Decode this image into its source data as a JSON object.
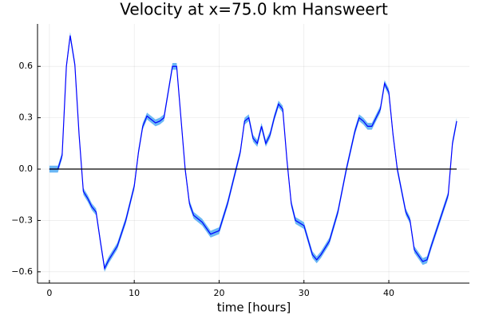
{
  "chart_data": {
    "type": "line",
    "title": "Velocity at x=75.0 km Hansweert",
    "xlabel": "time [hours]",
    "xlim": [
      -1.4,
      49.5
    ],
    "ylim": [
      -0.666,
      0.848
    ],
    "xticks": [
      0,
      10,
      20,
      30,
      40
    ],
    "yticks": [
      {
        "value": -0.6,
        "label": "−0.6"
      },
      {
        "value": -0.3,
        "label": "−0.3"
      },
      {
        "value": 0,
        "label": "0.0"
      },
      0.3,
      0.6
    ],
    "grid": true,
    "series": [
      {
        "color": "#0000ff",
        "ribbon_color": "#6ab7f5",
        "ribbon": 0.02,
        "x": [
          0,
          1,
          1.5,
          2,
          2.45,
          3,
          3.5,
          4,
          4.5,
          5,
          5.5,
          6,
          6.5,
          7,
          8,
          9,
          10,
          10.5,
          11,
          11.5,
          12,
          12.5,
          13,
          13.5,
          14,
          14.5,
          15,
          15.5,
          16,
          16.5,
          17,
          18,
          19,
          20,
          21,
          22,
          22.5,
          23,
          23.5,
          24,
          24.5,
          25,
          25.5,
          26,
          26.5,
          27,
          27.5,
          28,
          28.5,
          29,
          30,
          31,
          31.5,
          32,
          33,
          34,
          35,
          36,
          36.5,
          37,
          37.5,
          38,
          39,
          39.5,
          40,
          40.5,
          41,
          42,
          42.5,
          43,
          44,
          44.5,
          45,
          46,
          47,
          47.5,
          48
        ],
        "values": [
          0,
          0,
          0.08,
          0.6,
          0.78,
          0.61,
          0.2,
          -0.13,
          -0.17,
          -0.22,
          -0.25,
          -0.42,
          -0.58,
          -0.53,
          -0.45,
          -0.3,
          -0.1,
          0.1,
          0.25,
          0.31,
          0.29,
          0.27,
          0.28,
          0.3,
          0.45,
          0.6,
          0.6,
          0.3,
          0,
          -0.2,
          -0.27,
          -0.31,
          -0.38,
          -0.36,
          -0.2,
          0,
          0.1,
          0.28,
          0.3,
          0.18,
          0.15,
          0.25,
          0.15,
          0.2,
          0.3,
          0.38,
          0.35,
          0.05,
          -0.2,
          -0.3,
          -0.33,
          -0.5,
          -0.53,
          -0.5,
          -0.42,
          -0.25,
          0,
          0.22,
          0.3,
          0.28,
          0.25,
          0.25,
          0.35,
          0.5,
          0.45,
          0.2,
          0,
          -0.25,
          -0.3,
          -0.47,
          -0.54,
          -0.53,
          -0.45,
          -0.3,
          -0.15,
          0.15,
          0.28
        ]
      },
      {
        "color": "#000000",
        "x": [
          0,
          48
        ],
        "values": [
          0,
          0
        ]
      }
    ]
  }
}
